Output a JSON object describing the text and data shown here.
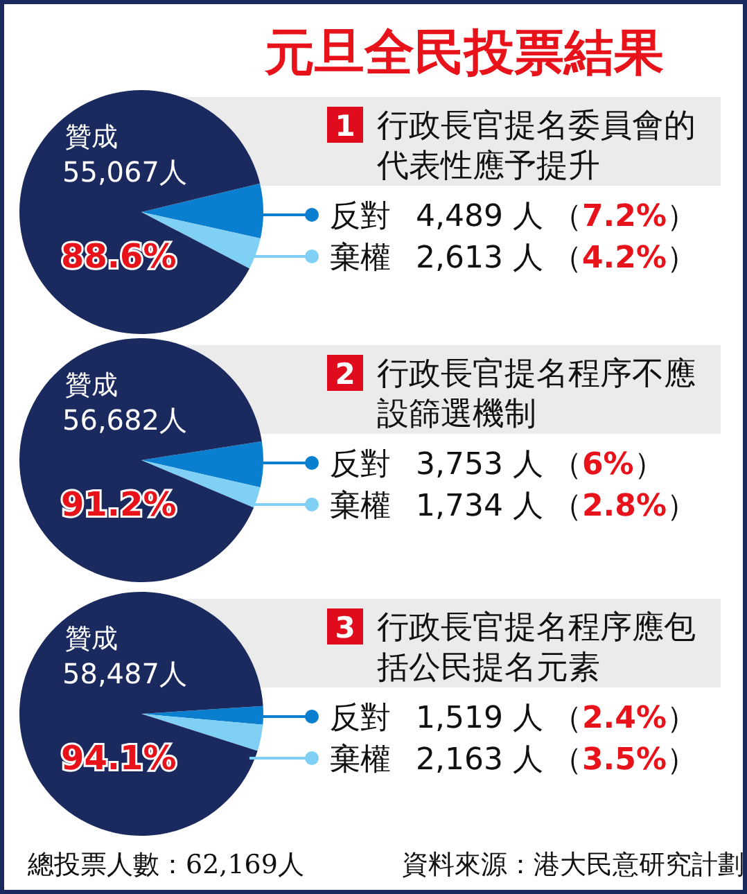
{
  "chart_data": [
    {
      "type": "other",
      "title": "元旦全民投票結果"
    },
    {
      "type": "pie",
      "title": "行政長官提名委員會的代表性應予提升",
      "categories": [
        "贊成",
        "反對",
        "棄權"
      ],
      "values": [
        55067,
        4489,
        2613
      ],
      "colors": [
        "#1b2a5e",
        "#0a7fcf",
        "#80d0f5"
      ],
      "value_labels": [
        "55,067人",
        "4,489 人",
        "2,613 人"
      ],
      "annotations": [
        "1",
        "88.6%",
        "（7.2%）",
        "（4.2%）"
      ],
      "legend": "right"
    },
    {
      "type": "pie",
      "title": "行政長官提名程序不應設篩選機制",
      "categories": [
        "贊成",
        "反對",
        "棄權"
      ],
      "values": [
        56682,
        3753,
        1734
      ],
      "colors": [
        "#1b2a5e",
        "#0a7fcf",
        "#80d0f5"
      ],
      "value_labels": [
        "56,682人",
        "3,753 人",
        "1,734 人"
      ],
      "annotations": [
        "2",
        "91.2%",
        "（6%）",
        "（2.8%）"
      ],
      "legend": "right"
    },
    {
      "type": "pie",
      "title": "行政長官提名程序應包括公民提名元素",
      "categories": [
        "贊成",
        "反對",
        "棄權"
      ],
      "values": [
        58487,
        1519,
        2163
      ],
      "colors": [
        "#1b2a5e",
        "#0a7fcf",
        "#80d0f5"
      ],
      "value_labels": [
        "58,487人",
        "1,519 人",
        "2,163 人"
      ],
      "annotations": [
        "3",
        "94.1%",
        "（2.4%）",
        "（3.5%）"
      ],
      "legend": "right"
    },
    {
      "type": "other",
      "annotations": [
        "總投票人數：62,169人",
        "資料來源：港大民意研究計劃"
      ]
    }
  ]
}
